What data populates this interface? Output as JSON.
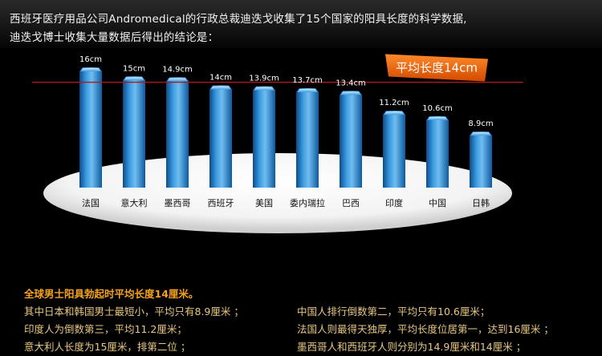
{
  "header": {
    "line1": "西班牙医疗用品公司Andromedical的行政总裁迪迭戈收集了15个国家的阳具长度的科学数据,",
    "line2": "迪迭戈博士收集大量数据后得出的结论是："
  },
  "colors": {
    "bar_light": "#7fc3f0",
    "bar_mid": "#2d8fd6",
    "bar_dark": "#0a4c8c",
    "avg_line": "#b0181b",
    "avg_badge": "#f06a10",
    "summary_title": "#f6a21c",
    "summary_text": "#e9c780"
  },
  "chart_data": {
    "type": "bar",
    "categories": [
      "法国",
      "意大利",
      "墨西哥",
      "西班牙",
      "美国",
      "委内瑞拉",
      "巴西",
      "印度",
      "中国",
      "日韩"
    ],
    "values": [
      16,
      15,
      14.9,
      14,
      13.9,
      13.7,
      13.4,
      11.2,
      10.6,
      8.9
    ],
    "data_labels": [
      "16cm",
      "15cm",
      "14.9cm",
      "14cm",
      "13.9cm",
      "13.7cm",
      "13.4cm",
      "11.2cm",
      "10.6cm",
      "8.9cm"
    ],
    "average": 14,
    "average_label": "平均长度14cm",
    "title": "",
    "xlabel": "",
    "ylabel": "",
    "grid": false
  },
  "summary": {
    "title": "全球男士阳具勃起时平均长度14厘米。",
    "left": [
      "其中日本和韩国男士最短小，平均只有8.9厘米 ；",
      "印度人为倒数第三，平均11.2厘米；",
      "意大利人长度为15厘米，排第二位 ；"
    ],
    "right": [
      "中国人排行倒数第二，平均只有10.6厘米；",
      "法国人则最得天独厚，平均长度位居第一，达到16厘米 ；",
      "墨西哥人和西班牙人则分别为14.9厘米和14厘米 ；"
    ]
  }
}
